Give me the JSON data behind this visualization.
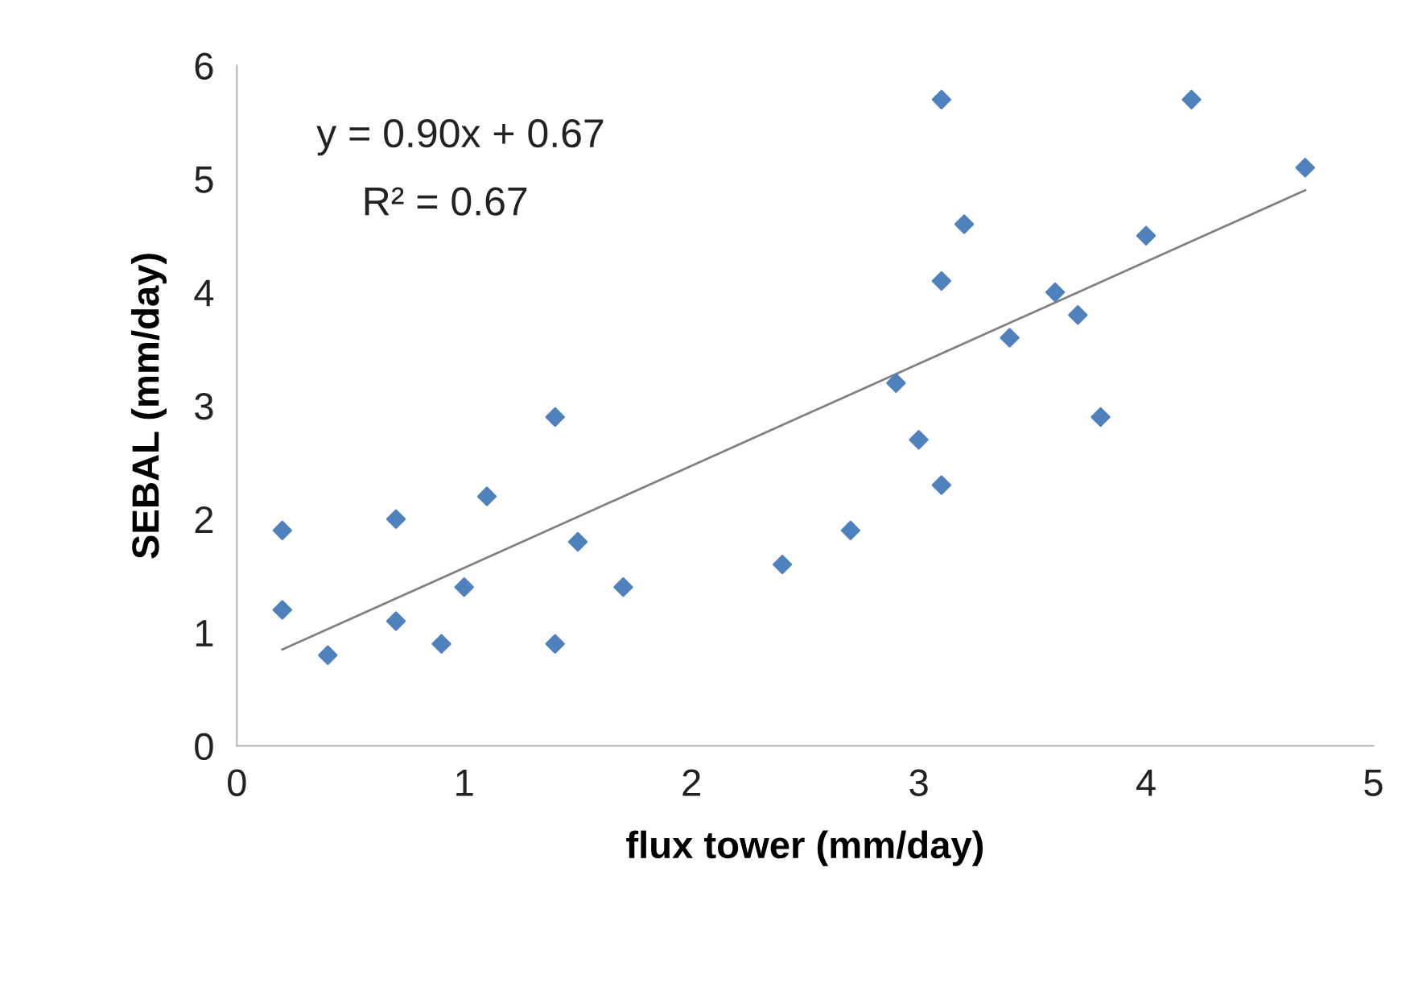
{
  "chart_data": {
    "type": "scatter",
    "xlabel": "flux tower (mm/day)",
    "ylabel": "SEBAL (mm/day)",
    "xlim": [
      0,
      5
    ],
    "xticks": [
      0,
      1,
      2,
      3,
      4,
      5
    ],
    "ylim": [
      0,
      6
    ],
    "yticks": [
      0,
      1,
      2,
      3,
      4,
      5,
      6
    ],
    "grid": false,
    "legend": false,
    "annotations": [
      "y = 0.90x + 0.67",
      "R² = 0.67"
    ],
    "series": [
      {
        "color": "#4f81bd",
        "marker": "diamond",
        "x": [
          0.2,
          0.2,
          0.4,
          0.7,
          0.7,
          0.9,
          1.0,
          1.1,
          1.4,
          1.4,
          1.5,
          1.7,
          2.4,
          2.7,
          2.9,
          3.0,
          3.1,
          3.1,
          3.1,
          3.2,
          3.4,
          3.6,
          3.7,
          3.8,
          4.0,
          4.2,
          4.7
        ],
        "values": [
          1.9,
          1.2,
          0.8,
          2.0,
          1.1,
          0.9,
          1.4,
          2.2,
          2.9,
          0.9,
          1.8,
          1.4,
          1.6,
          1.9,
          3.2,
          2.7,
          5.7,
          4.1,
          2.3,
          4.6,
          3.6,
          4.0,
          3.8,
          2.9,
          4.5,
          5.7,
          5.1
        ]
      },
      {
        "type": "line",
        "color": "#808080",
        "marker": "none",
        "line_style": "solid",
        "x": [
          0.2,
          4.7
        ],
        "values": [
          0.85,
          4.9
        ]
      }
    ]
  }
}
